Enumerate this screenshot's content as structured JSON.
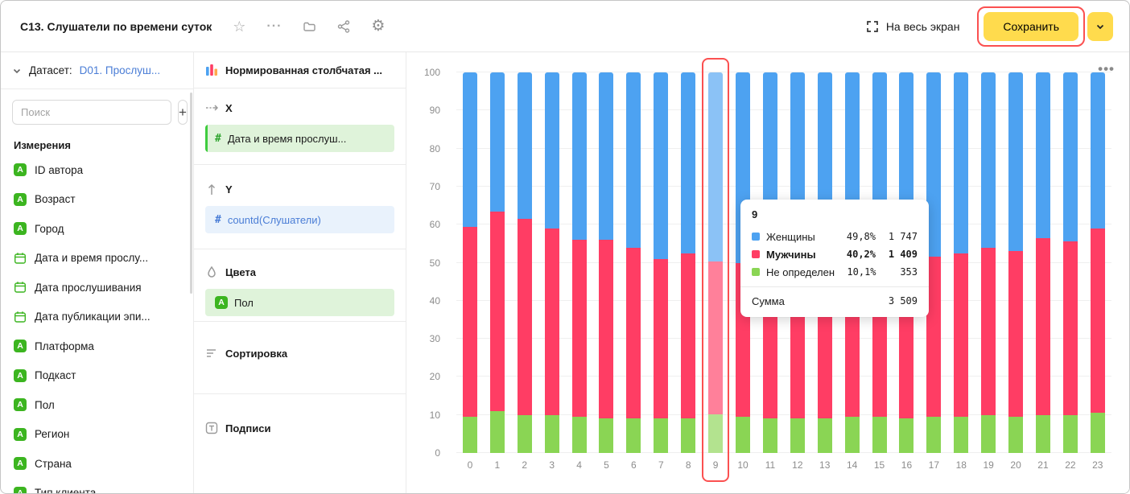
{
  "colors": {
    "accent_yellow": "#FFDB4D",
    "annotation_red": "#FB5050",
    "link_blue": "#4A7DD6",
    "field_green": "#3CB520",
    "chip_green_bg": "#DFF3DA",
    "chip_blue_bg": "#E9F2FC"
  },
  "header": {
    "title": "C13. Слушатели по времени суток",
    "fullscreen_label": "На весь экран",
    "save_label": "Сохранить"
  },
  "dataset_panel": {
    "dataset_label": "Датасет:",
    "dataset_name": "D01. Прослуш...",
    "search_placeholder": "Поиск",
    "add_button_label": "+",
    "dimensions_title": "Измерения",
    "fields": [
      {
        "name": "ID автора",
        "type": "string"
      },
      {
        "name": "Возраст",
        "type": "string"
      },
      {
        "name": "Город",
        "type": "string"
      },
      {
        "name": "Дата и время прослу...",
        "type": "date"
      },
      {
        "name": "Дата прослушивания",
        "type": "date"
      },
      {
        "name": "Дата публикации эпи...",
        "type": "date"
      },
      {
        "name": "Платформа",
        "type": "string"
      },
      {
        "name": "Подкаст",
        "type": "string"
      },
      {
        "name": "Пол",
        "type": "string"
      },
      {
        "name": "Регион",
        "type": "string"
      },
      {
        "name": "Страна",
        "type": "string"
      },
      {
        "name": "Тип клиента",
        "type": "string"
      }
    ]
  },
  "config_panel": {
    "chart_type": "Нормированная столбчатая ...",
    "x_label": "X",
    "x_field": "Дата и время прослуш...",
    "y_label": "Y",
    "y_field": "countd(Слушатели)",
    "colors_label": "Цвета",
    "colors_field": "Пол",
    "sort_label": "Сортировка",
    "labels_label": "Подписи"
  },
  "tooltip": {
    "title": "9",
    "rows": [
      {
        "name": "Женщины",
        "percent": "49,8%",
        "value": "1 747",
        "color": "#4DA2F1",
        "bold": false
      },
      {
        "name": "Мужчины",
        "percent": "40,2%",
        "value": "1 409",
        "color": "#FF3D64",
        "bold": true
      },
      {
        "name": "Не определен",
        "percent": "10,1%",
        "value": "353",
        "color": "#8AD554",
        "bold": false
      }
    ],
    "total_label": "Сумма",
    "total_value": "3 509"
  },
  "chart_data": {
    "type": "bar",
    "stacked": true,
    "normalized": true,
    "title": "",
    "xlabel": "",
    "ylabel": "",
    "ylim": [
      0,
      100
    ],
    "yticks": [
      0,
      10,
      20,
      30,
      40,
      50,
      60,
      70,
      80,
      90,
      100
    ],
    "categories": [
      0,
      1,
      2,
      3,
      4,
      5,
      6,
      7,
      8,
      9,
      10,
      11,
      12,
      13,
      14,
      15,
      16,
      17,
      18,
      19,
      20,
      21,
      22,
      23
    ],
    "series": [
      {
        "name": "Женщины",
        "color": "#4DA2F1",
        "values": [
          40.5,
          36.5,
          38.5,
          41,
          44,
          44,
          46,
          49,
          47.5,
          49.8,
          50,
          50,
          50,
          50,
          50,
          50,
          51,
          48.5,
          47.5,
          46,
          47,
          43.5,
          44.5,
          41
        ]
      },
      {
        "name": "Мужчины",
        "color": "#FF3D64",
        "values": [
          50,
          52.5,
          51.5,
          49,
          46.5,
          47,
          45,
          42,
          43.5,
          40.2,
          40.5,
          41,
          41,
          41,
          40.5,
          40.5,
          40,
          42,
          43,
          44,
          43.5,
          46.5,
          45.5,
          48.5
        ]
      },
      {
        "name": "Не определен",
        "color": "#8AD554",
        "values": [
          9.5,
          11,
          10,
          10,
          9.5,
          9,
          9,
          9,
          9,
          10.1,
          9.5,
          9,
          9,
          9,
          9.5,
          9.5,
          9,
          9.5,
          9.5,
          10,
          9.5,
          10,
          10,
          10.5
        ]
      }
    ],
    "highlighted_category": 9,
    "legend": "none",
    "grid": true
  }
}
